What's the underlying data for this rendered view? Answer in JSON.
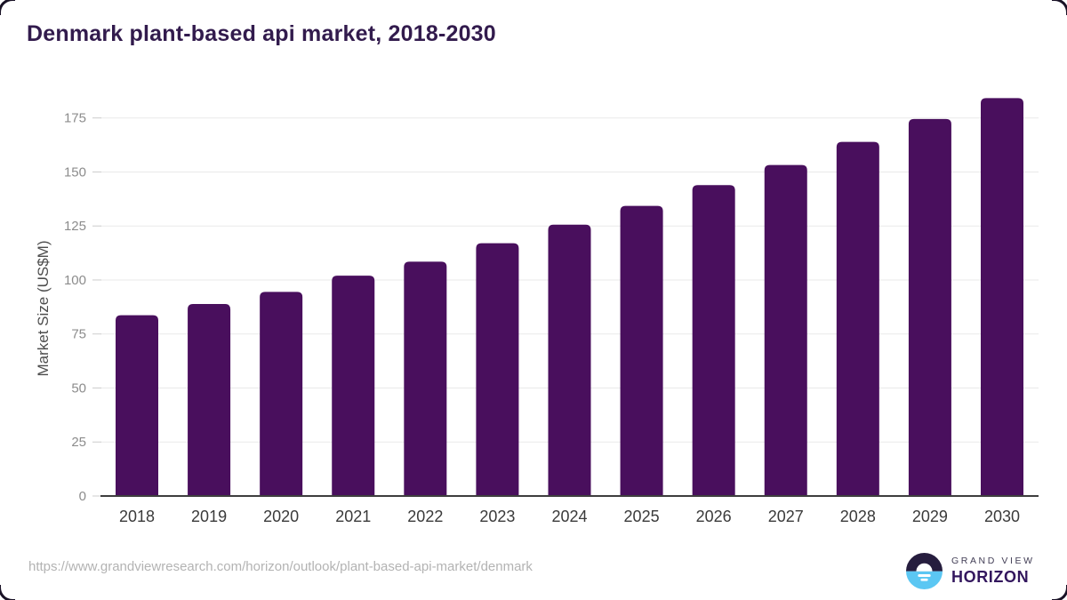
{
  "chart_data": {
    "type": "bar",
    "title": "Denmark plant-based api market, 2018-2030",
    "categories": [
      "2018",
      "2019",
      "2020",
      "2021",
      "2022",
      "2023",
      "2024",
      "2025",
      "2026",
      "2027",
      "2028",
      "2029",
      "2030"
    ],
    "values": [
      83.7,
      88.9,
      94.5,
      102.0,
      108.5,
      117.0,
      125.6,
      134.3,
      143.9,
      153.2,
      163.9,
      174.5,
      184.2
    ],
    "xlabel": "",
    "ylabel": "Market Size (US$M)",
    "yticks": [
      0,
      25,
      50,
      75,
      100,
      125,
      150,
      175
    ],
    "ylim": [
      0,
      190
    ],
    "grid": true,
    "legend": "none",
    "bar_color": "#490f5d"
  },
  "footer": {
    "source_url": "https://www.grandviewresearch.com/horizon/outlook/plant-based-api-market/denmark",
    "logo": {
      "icon": "horizon-sunrise-icon",
      "line1": "GRAND VIEW",
      "line2": "HORIZON",
      "mark_dark_color": "#261d3e",
      "mark_blue_color": "#5bc7f3"
    }
  },
  "colors": {
    "title_text": "#321b4d",
    "axis_line": "#3e3e3e",
    "gridline": "#e9e9e9",
    "y_tick_text": "#8c8c8c",
    "x_tick_text": "#3a3a3a",
    "url_text": "#b3b3b3"
  }
}
